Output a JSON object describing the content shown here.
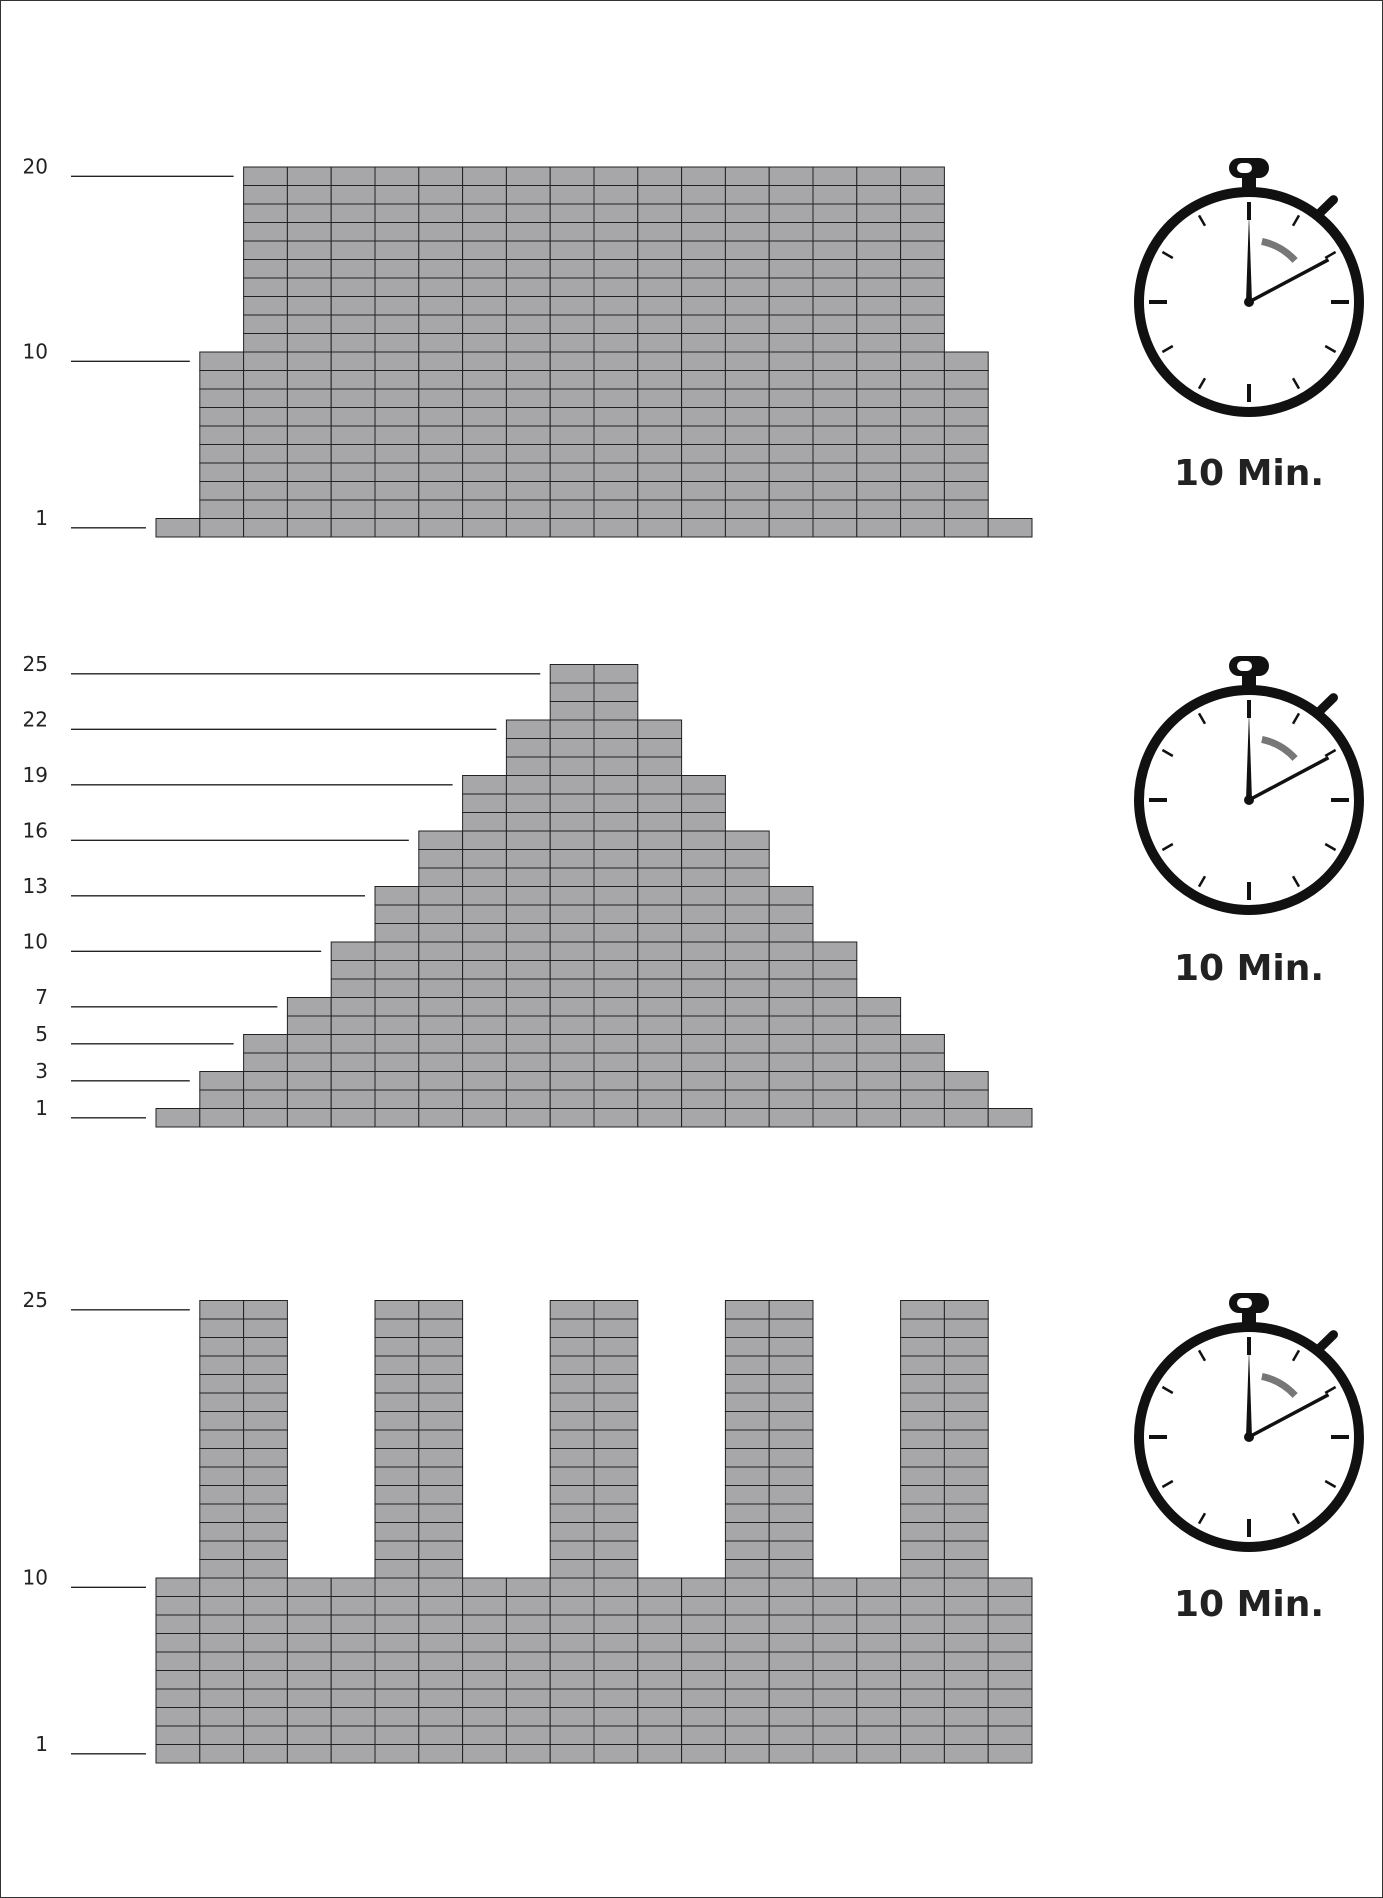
{
  "colors": {
    "cell_fill": "#a7a7a9",
    "cell_stroke": "#222222",
    "tick_line": "#222222",
    "text": "#222222",
    "stopwatch": "#111111",
    "sweep": "#777777"
  },
  "chart_data": [
    {
      "type": "bar",
      "columns": 20,
      "values": [
        1,
        10,
        20,
        20,
        20,
        20,
        20,
        20,
        20,
        20,
        20,
        20,
        20,
        20,
        20,
        20,
        20,
        20,
        10,
        1
      ],
      "y_tick_labels": [
        "1",
        "10",
        "20"
      ],
      "y_ticks": [
        1,
        10,
        20
      ],
      "ylim": [
        0,
        20
      ],
      "grid": true,
      "duration": {
        "label": "10 Min.",
        "icon": "stopwatch-icon"
      }
    },
    {
      "type": "bar",
      "columns": 20,
      "values": [
        1,
        3,
        5,
        7,
        10,
        13,
        16,
        19,
        22,
        25,
        25,
        22,
        19,
        16,
        13,
        10,
        7,
        5,
        3,
        1
      ],
      "y_tick_labels": [
        "1",
        "3",
        "5",
        "7",
        "10",
        "13",
        "16",
        "19",
        "22",
        "25"
      ],
      "y_ticks": [
        1,
        3,
        5,
        7,
        10,
        13,
        16,
        19,
        22,
        25
      ],
      "ylim": [
        0,
        25
      ],
      "grid": true,
      "duration": {
        "label": "10 Min.",
        "icon": "stopwatch-icon"
      }
    },
    {
      "type": "bar",
      "columns": 20,
      "values": [
        10,
        25,
        25,
        10,
        10,
        25,
        25,
        10,
        10,
        25,
        25,
        10,
        10,
        25,
        25,
        10,
        10,
        25,
        25,
        10
      ],
      "y_tick_labels": [
        "1",
        "10",
        "25"
      ],
      "y_ticks": [
        1,
        10,
        25
      ],
      "ylim": [
        0,
        25
      ],
      "grid": true,
      "duration": {
        "label": "10 Min.",
        "icon": "stopwatch-icon"
      }
    }
  ]
}
